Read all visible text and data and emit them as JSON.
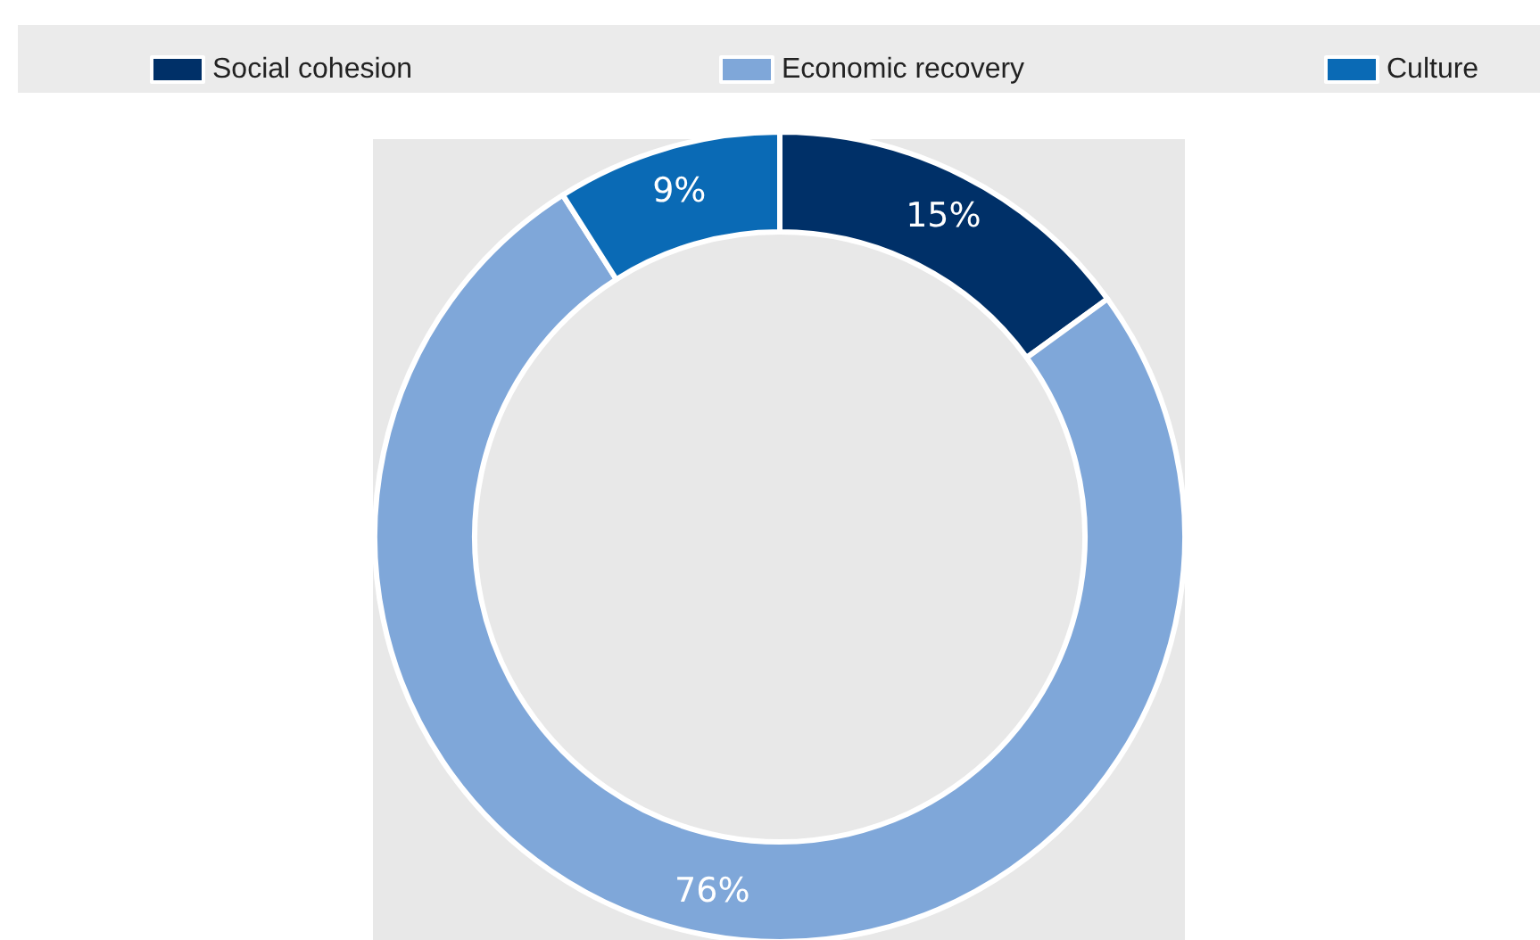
{
  "chart_data": {
    "type": "donut",
    "categories": [
      "Social cohesion",
      "Economic recovery",
      "Culture"
    ],
    "values": [
      15,
      76,
      9
    ],
    "value_labels": [
      "15%",
      "76%",
      "9%"
    ],
    "colors": [
      "#003068",
      "#7fa7d9",
      "#0a6ab5"
    ],
    "legend": "top"
  }
}
